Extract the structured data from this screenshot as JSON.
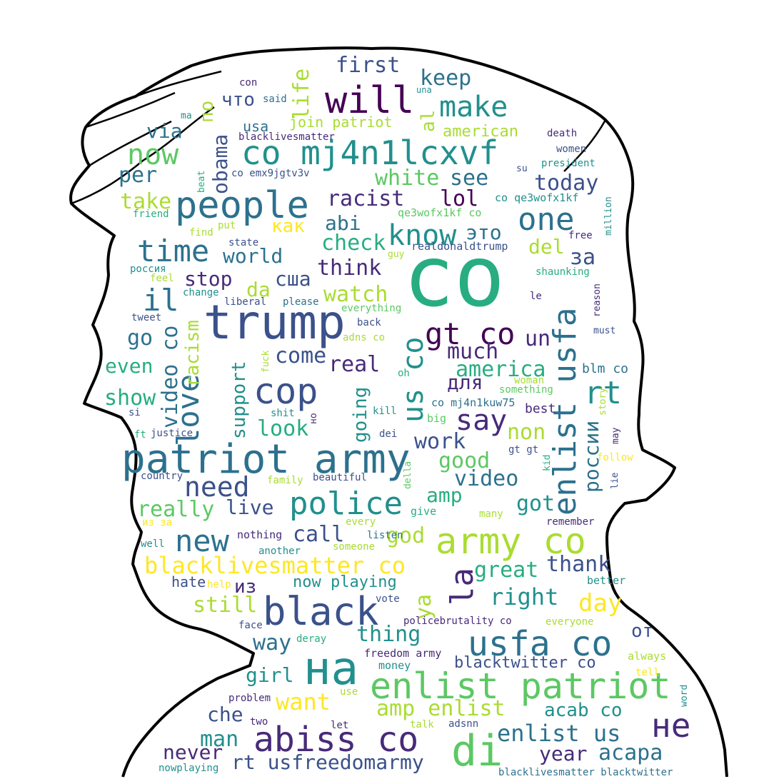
{
  "cloud": {
    "palette": [
      "#440154",
      "#472a7a",
      "#3b518b",
      "#2c718e",
      "#21908d",
      "#27ad81",
      "#5cc863",
      "#aadc32",
      "#fde725"
    ],
    "words": [
      {
        "t": "co",
        "s": 118,
        "c": "#27ad81"
      },
      {
        "t": "trump",
        "s": 66,
        "c": "#3b518b"
      },
      {
        "t": "people",
        "s": 52,
        "c": "#2c718e"
      },
      {
        "t": "co mj4n1lcxvf",
        "s": 46,
        "c": "#21908d"
      },
      {
        "t": "will",
        "s": 52,
        "c": "#440154"
      },
      {
        "t": "patriot army",
        "s": 56,
        "c": "#2c718e"
      },
      {
        "t": "enlist patriot",
        "s": 50,
        "c": "#5cc863"
      },
      {
        "t": "на",
        "s": 64,
        "c": "#21908d"
      },
      {
        "t": "black",
        "s": 54,
        "c": "#3b518b"
      },
      {
        "t": "abiss co",
        "s": 48,
        "c": "#472a7a"
      },
      {
        "t": "di",
        "s": 60,
        "c": "#5cc863"
      },
      {
        "t": "army co",
        "s": 50,
        "c": "#aadc32"
      },
      {
        "t": "usfa co",
        "s": 48,
        "c": "#2c718e"
      },
      {
        "t": "police",
        "s": 44,
        "c": "#21908d"
      },
      {
        "t": "cop",
        "s": 50,
        "c": "#3b518b"
      },
      {
        "t": "new",
        "s": 42,
        "c": "#2c718e"
      },
      {
        "t": "time",
        "s": 42,
        "c": "#2c718e"
      },
      {
        "t": "one",
        "s": 44,
        "c": "#2c718e"
      },
      {
        "t": "make",
        "s": 40,
        "c": "#21908d"
      },
      {
        "t": "now",
        "s": 40,
        "c": "#5cc863"
      },
      {
        "t": "know",
        "s": 40,
        "c": "#21908d"
      },
      {
        "t": "gt co",
        "s": 42,
        "c": "#440154"
      },
      {
        "t": "enlist usfa",
        "s": 44,
        "c": "#2c718e"
      },
      {
        "t": "love",
        "s": 42,
        "c": "#2c718e"
      },
      {
        "t": "us co",
        "s": 40,
        "c": "#21908d"
      },
      {
        "t": "rt",
        "s": 44,
        "c": "#21908d"
      },
      {
        "t": "say",
        "s": 40,
        "c": "#472a7a"
      },
      {
        "t": "need",
        "s": 38,
        "c": "#3b518b"
      },
      {
        "t": "blacklivesmatter co",
        "s": 32,
        "c": "#fde725"
      },
      {
        "t": "la",
        "s": 44,
        "c": "#472a7a"
      },
      {
        "t": "не",
        "s": 46,
        "c": "#472a7a"
      },
      {
        "t": "il",
        "s": 42,
        "c": "#2c718e"
      },
      {
        "t": "first",
        "s": 30,
        "c": "#3b518b"
      },
      {
        "t": "keep",
        "s": 30,
        "c": "#2c718e"
      },
      {
        "t": "life",
        "s": 30,
        "c": "#aadc32"
      },
      {
        "t": "что",
        "s": 26,
        "c": "#3b518b"
      },
      {
        "t": "по",
        "s": 26,
        "c": "#aadc32"
      },
      {
        "t": "al",
        "s": 26,
        "c": "#aadc32"
      },
      {
        "t": "via",
        "s": 28,
        "c": "#2c718e"
      },
      {
        "t": "obama",
        "s": 28,
        "c": "#3b518b"
      },
      {
        "t": "per",
        "s": 30,
        "c": "#2c718e"
      },
      {
        "t": "usa",
        "s": 20,
        "c": "#2c718e"
      },
      {
        "t": "join patriot",
        "s": 20,
        "c": "#aadc32"
      },
      {
        "t": "american",
        "s": 22,
        "c": "#aadc32"
      },
      {
        "t": "white",
        "s": 30,
        "c": "#5cc863"
      },
      {
        "t": "see",
        "s": 30,
        "c": "#2c718e"
      },
      {
        "t": "today",
        "s": 30,
        "c": "#3b518b"
      },
      {
        "t": "take",
        "s": 30,
        "c": "#aadc32"
      },
      {
        "t": "racist",
        "s": 30,
        "c": "#472a7a"
      },
      {
        "t": "lol",
        "s": 30,
        "c": "#440154"
      },
      {
        "t": "abi",
        "s": 28,
        "c": "#2c718e"
      },
      {
        "t": "как",
        "s": 26,
        "c": "#fde725"
      },
      {
        "t": "это",
        "s": 28,
        "c": "#2c718e"
      },
      {
        "t": "check",
        "s": 30,
        "c": "#27ad81"
      },
      {
        "t": "del",
        "s": 28,
        "c": "#aadc32"
      },
      {
        "t": "world",
        "s": 28,
        "c": "#2c718e"
      },
      {
        "t": "think",
        "s": 30,
        "c": "#472a7a"
      },
      {
        "t": "за",
        "s": 30,
        "c": "#3b518b"
      },
      {
        "t": "stop",
        "s": 28,
        "c": "#472a7a"
      },
      {
        "t": "сша",
        "s": 28,
        "c": "#3b518b"
      },
      {
        "t": "da",
        "s": 28,
        "c": "#aadc32"
      },
      {
        "t": "watch",
        "s": 30,
        "c": "#aadc32"
      },
      {
        "t": "go",
        "s": 30,
        "c": "#2c718e"
      },
      {
        "t": "come",
        "s": 30,
        "c": "#3b518b"
      },
      {
        "t": "much",
        "s": 30,
        "c": "#472a7a"
      },
      {
        "t": "un",
        "s": 30,
        "c": "#472a7a"
      },
      {
        "t": "racism",
        "s": 26,
        "c": "#aadc32"
      },
      {
        "t": "video co",
        "s": 30,
        "c": "#2c718e"
      },
      {
        "t": "even",
        "s": 28,
        "c": "#27ad81"
      },
      {
        "t": "real",
        "s": 30,
        "c": "#472a7a"
      },
      {
        "t": "america",
        "s": 30,
        "c": "#27ad81"
      },
      {
        "t": "для",
        "s": 28,
        "c": "#472a7a"
      },
      {
        "t": "show",
        "s": 30,
        "c": "#27ad81"
      },
      {
        "t": "support",
        "s": 26,
        "c": "#21908d"
      },
      {
        "t": "going",
        "s": 26,
        "c": "#21908d"
      },
      {
        "t": "look",
        "s": 30,
        "c": "#27ad81"
      },
      {
        "t": "россии",
        "s": 28,
        "c": "#2c718e"
      },
      {
        "t": "non",
        "s": 30,
        "c": "#aadc32"
      },
      {
        "t": "work",
        "s": 30,
        "c": "#3b518b"
      },
      {
        "t": "good",
        "s": 30,
        "c": "#5cc863"
      },
      {
        "t": "video",
        "s": 30,
        "c": "#2c718e"
      },
      {
        "t": "amp",
        "s": 28,
        "c": "#27ad81"
      },
      {
        "t": "got",
        "s": 30,
        "c": "#21908d"
      },
      {
        "t": "really",
        "s": 30,
        "c": "#5cc863"
      },
      {
        "t": "live",
        "s": 28,
        "c": "#3b518b"
      },
      {
        "t": "call",
        "s": 30,
        "c": "#3b518b"
      },
      {
        "t": "god",
        "s": 30,
        "c": "#aadc32"
      },
      {
        "t": "thank",
        "s": 30,
        "c": "#3b518b"
      },
      {
        "t": "great",
        "s": 30,
        "c": "#27ad81"
      },
      {
        "t": "из",
        "s": 26,
        "c": "#472a7a"
      },
      {
        "t": "hate",
        "s": 20,
        "c": "#3b518b"
      },
      {
        "t": "now playing",
        "s": 22,
        "c": "#21908d"
      },
      {
        "t": "right",
        "s": 32,
        "c": "#21908d"
      },
      {
        "t": "ya",
        "s": 30,
        "c": "#aadc32"
      },
      {
        "t": "still",
        "s": 30,
        "c": "#aadc32"
      },
      {
        "t": "day",
        "s": 34,
        "c": "#fde725"
      },
      {
        "t": "thing",
        "s": 30,
        "c": "#21908d"
      },
      {
        "t": "way",
        "s": 30,
        "c": "#2c718e"
      },
      {
        "t": "от",
        "s": 26,
        "c": "#3b518b"
      },
      {
        "t": "girl",
        "s": 28,
        "c": "#21908d"
      },
      {
        "t": "blacktwitter co",
        "s": 22,
        "c": "#3b518b"
      },
      {
        "t": "want",
        "s": 32,
        "c": "#fde725"
      },
      {
        "t": "amp enlist",
        "s": 30,
        "c": "#aadc32"
      },
      {
        "t": "acab co",
        "s": 26,
        "c": "#21908d"
      },
      {
        "t": "che",
        "s": 28,
        "c": "#3b518b"
      },
      {
        "t": "man",
        "s": 30,
        "c": "#21908d"
      },
      {
        "t": "enlist us",
        "s": 32,
        "c": "#2c718e"
      },
      {
        "t": "never",
        "s": 28,
        "c": "#472a7a"
      },
      {
        "t": "rt usfreedomarmy",
        "s": 28,
        "c": "#3b518b"
      },
      {
        "t": "year",
        "s": 28,
        "c": "#472a7a"
      },
      {
        "t": "acapa",
        "s": 30,
        "c": "#2c718e"
      },
      {
        "t": "con",
        "s": 14,
        "c": "#472a7a"
      },
      {
        "t": "said",
        "s": 14,
        "c": "#2c718e"
      },
      {
        "t": "una",
        "s": 12,
        "c": "#21908d"
      },
      {
        "t": "blacklivesmatter",
        "s": 14,
        "c": "#472a7a"
      },
      {
        "t": "death",
        "s": 14,
        "c": "#472a7a"
      },
      {
        "t": "women",
        "s": 14,
        "c": "#3b518b"
      },
      {
        "t": "president",
        "s": 14,
        "c": "#21908d"
      },
      {
        "t": "su",
        "s": 13,
        "c": "#3b518b"
      },
      {
        "t": "co emx9jgtv3v",
        "s": 14,
        "c": "#3b518b"
      },
      {
        "t": "beat",
        "s": 13,
        "c": "#27ad81"
      },
      {
        "t": "ma",
        "s": 13,
        "c": "#21908d"
      },
      {
        "t": "co qe3wofx1kf",
        "s": 15,
        "c": "#21908d"
      },
      {
        "t": "million",
        "s": 13,
        "c": "#21908d"
      },
      {
        "t": "friend",
        "s": 14,
        "c": "#27ad81"
      },
      {
        "t": "qe3wofx1kf co",
        "s": 15,
        "c": "#5cc863"
      },
      {
        "t": "find",
        "s": 14,
        "c": "#aadc32"
      },
      {
        "t": "put",
        "s": 14,
        "c": "#aadc32"
      },
      {
        "t": "free",
        "s": 14,
        "c": "#472a7a"
      },
      {
        "t": "state",
        "s": 14,
        "c": "#3b518b"
      },
      {
        "t": "realdonaldtrump",
        "s": 15,
        "c": "#3b518b"
      },
      {
        "t": "guy",
        "s": 13,
        "c": "#aadc32"
      },
      {
        "t": "россия",
        "s": 14,
        "c": "#21908d"
      },
      {
        "t": "shaunking",
        "s": 14,
        "c": "#27ad81"
      },
      {
        "t": "feel",
        "s": 14,
        "c": "#aadc32"
      },
      {
        "t": "change",
        "s": 14,
        "c": "#21908d"
      },
      {
        "t": "liberal",
        "s": 14,
        "c": "#3b518b"
      },
      {
        "t": "please",
        "s": 14,
        "c": "#2c718e"
      },
      {
        "t": "everything",
        "s": 14,
        "c": "#5cc863"
      },
      {
        "t": "le",
        "s": 14,
        "c": "#472a7a"
      },
      {
        "t": "reason",
        "s": 13,
        "c": "#472a7a"
      },
      {
        "t": "tweet",
        "s": 14,
        "c": "#3b518b"
      },
      {
        "t": "back",
        "s": 14,
        "c": "#3b518b"
      },
      {
        "t": "must",
        "s": 13,
        "c": "#3b518b"
      },
      {
        "t": "adns co",
        "s": 14,
        "c": "#aadc32"
      },
      {
        "t": "fuck",
        "s": 13,
        "c": "#aadc32"
      },
      {
        "t": "blm co",
        "s": 18,
        "c": "#2c718e"
      },
      {
        "t": "oh",
        "s": 14,
        "c": "#27ad81"
      },
      {
        "t": "woman",
        "s": 14,
        "c": "#aadc32"
      },
      {
        "t": "something",
        "s": 14,
        "c": "#5cc863"
      },
      {
        "t": "co mj4n1kuw75",
        "s": 15,
        "c": "#2c718e"
      },
      {
        "t": "best",
        "s": 18,
        "c": "#472a7a"
      },
      {
        "t": "story",
        "s": 13,
        "c": "#aadc32"
      },
      {
        "t": "si",
        "s": 14,
        "c": "#3b518b"
      },
      {
        "t": "shit",
        "s": 14,
        "c": "#21908d"
      },
      {
        "t": "но",
        "s": 13,
        "c": "#472a7a"
      },
      {
        "t": "kill",
        "s": 14,
        "c": "#21908d"
      },
      {
        "t": "big",
        "s": 15,
        "c": "#5cc863"
      },
      {
        "t": "ft",
        "s": 14,
        "c": "#27ad81"
      },
      {
        "t": "justice",
        "s": 14,
        "c": "#3b518b"
      },
      {
        "t": "dei",
        "s": 14,
        "c": "#3b518b"
      },
      {
        "t": "may",
        "s": 13,
        "c": "#472a7a"
      },
      {
        "t": "gt gt",
        "s": 14,
        "c": "#3b518b"
      },
      {
        "t": "kid",
        "s": 13,
        "c": "#27ad81"
      },
      {
        "t": "follow",
        "s": 14,
        "c": "#fde725"
      },
      {
        "t": "della",
        "s": 13,
        "c": "#5cc863"
      },
      {
        "t": "country",
        "s": 14,
        "c": "#3b518b"
      },
      {
        "t": "family",
        "s": 14,
        "c": "#aadc32"
      },
      {
        "t": "beautiful",
        "s": 14,
        "c": "#3b518b"
      },
      {
        "t": "lie",
        "s": 13,
        "c": "#3b518b"
      },
      {
        "t": "give",
        "s": 15,
        "c": "#27ad81"
      },
      {
        "t": "many",
        "s": 14,
        "c": "#aadc32"
      },
      {
        "t": "из за",
        "s": 14,
        "c": "#fde725"
      },
      {
        "t": "every",
        "s": 14,
        "c": "#aadc32"
      },
      {
        "t": "remember",
        "s": 14,
        "c": "#472a7a"
      },
      {
        "t": "nothing",
        "s": 15,
        "c": "#472a7a"
      },
      {
        "t": "listen",
        "s": 14,
        "c": "#2c718e"
      },
      {
        "t": "well",
        "s": 14,
        "c": "#21908d"
      },
      {
        "t": "someone",
        "s": 14,
        "c": "#aadc32"
      },
      {
        "t": "another",
        "s": 14,
        "c": "#21908d"
      },
      {
        "t": "help",
        "s": 14,
        "c": "#fde725"
      },
      {
        "t": "better",
        "s": 15,
        "c": "#21908d"
      },
      {
        "t": "vote",
        "s": 14,
        "c": "#3b518b"
      },
      {
        "t": "policebrutality co",
        "s": 14,
        "c": "#472a7a"
      },
      {
        "t": "everyone",
        "s": 14,
        "c": "#aadc32"
      },
      {
        "t": "face",
        "s": 14,
        "c": "#3b518b"
      },
      {
        "t": "deray",
        "s": 14,
        "c": "#27ad81"
      },
      {
        "t": "freedom army",
        "s": 15,
        "c": "#472a7a"
      },
      {
        "t": "always",
        "s": 15,
        "c": "#aadc32"
      },
      {
        "t": "money",
        "s": 15,
        "c": "#21908d"
      },
      {
        "t": "tell",
        "s": 14,
        "c": "#fde725"
      },
      {
        "t": "use",
        "s": 14,
        "c": "#aadc32"
      },
      {
        "t": "problem",
        "s": 14,
        "c": "#472a7a"
      },
      {
        "t": "word",
        "s": 13,
        "c": "#21908d"
      },
      {
        "t": "two",
        "s": 14,
        "c": "#472a7a"
      },
      {
        "t": "let",
        "s": 14,
        "c": "#472a7a"
      },
      {
        "t": "talk",
        "s": 14,
        "c": "#aadc32"
      },
      {
        "t": "adsnn",
        "s": 14,
        "c": "#3b518b"
      },
      {
        "t": "nowplaying",
        "s": 14,
        "c": "#21908d"
      },
      {
        "t": "blacklivesmatter blacktwitter",
        "s": 14,
        "c": "#2c718e"
      }
    ]
  }
}
